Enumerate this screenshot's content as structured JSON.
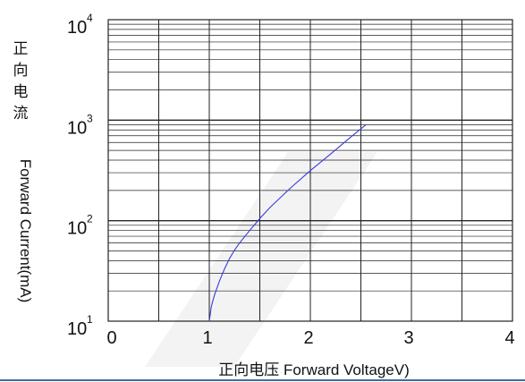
{
  "chart_data": {
    "type": "line",
    "x_scale": "linear",
    "y_scale": "log",
    "xlim": [
      0,
      4
    ],
    "ylim": [
      10,
      10000
    ],
    "x_ticks": [
      "0",
      "1",
      "2",
      "3",
      "4"
    ],
    "y_ticks": [
      {
        "base": "10",
        "exp": "1"
      },
      {
        "base": "10",
        "exp": "2"
      },
      {
        "base": "10",
        "exp": "3"
      },
      {
        "base": "10",
        "exp": "4"
      }
    ],
    "ylabel_cn": [
      "正",
      "向",
      "电",
      "流"
    ],
    "ylabel_en": "Forward Current(mA)",
    "xlabel": "正向电压 Forward VoltageV)",
    "grid": true,
    "series": [
      {
        "color": "#3a3adc",
        "x": [
          1.0,
          1.02,
          1.05,
          1.1,
          1.15,
          1.2,
          1.25,
          1.3,
          1.4,
          1.5,
          1.6,
          1.8,
          2.0,
          2.2,
          2.4,
          2.55
        ],
        "y": [
          10,
          14,
          18,
          25,
          33,
          42,
          51,
          60,
          80,
          105,
          135,
          210,
          315,
          460,
          680,
          900
        ]
      }
    ]
  }
}
